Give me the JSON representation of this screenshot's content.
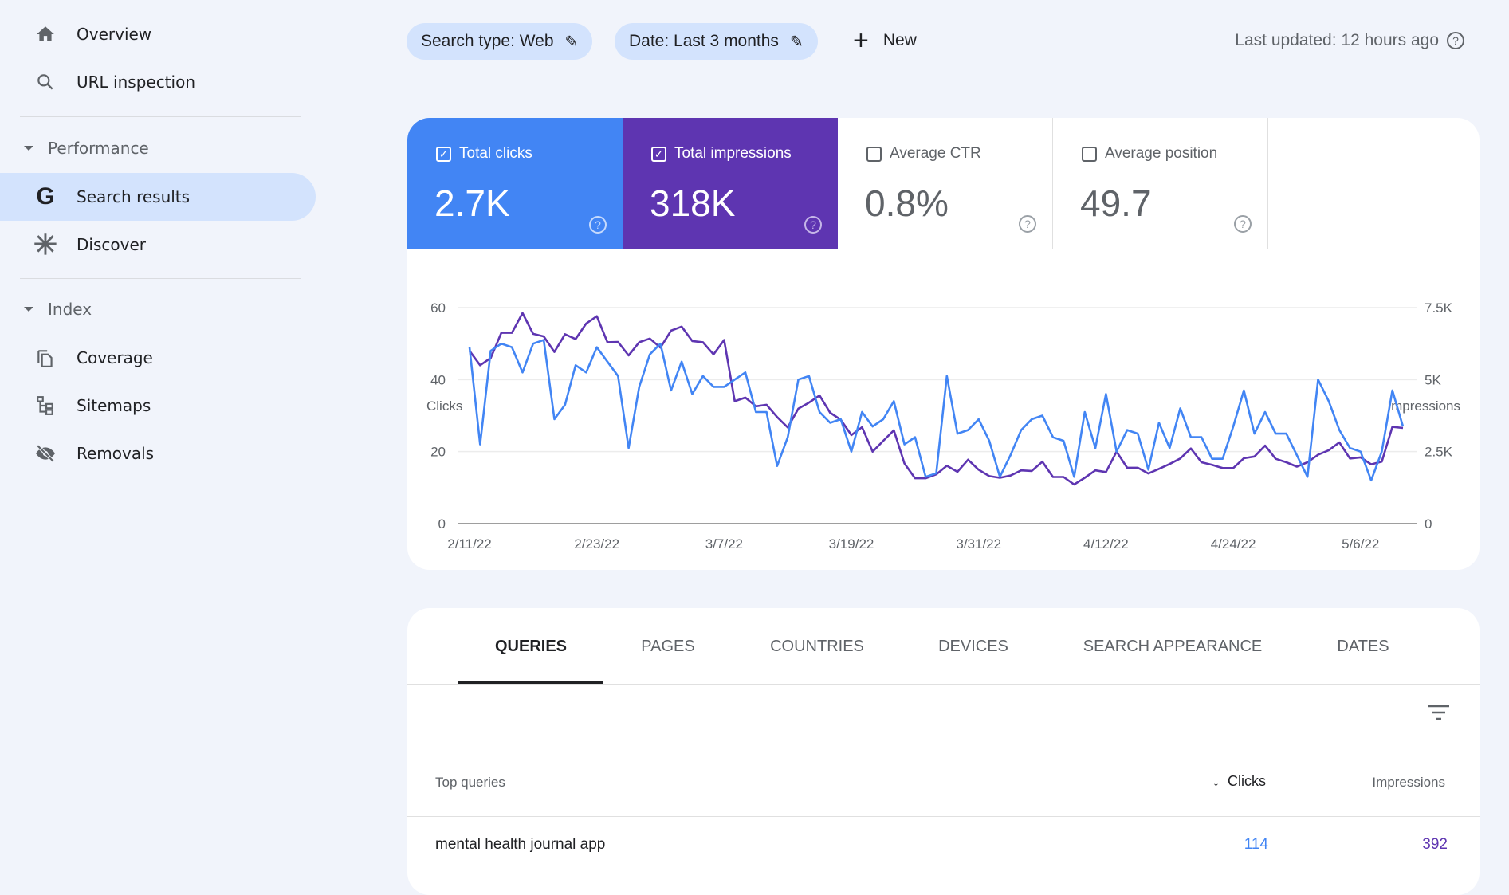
{
  "sidebar": {
    "items": [
      {
        "label": "Overview",
        "icon": "home-icon"
      },
      {
        "label": "URL inspection",
        "icon": "search-icon"
      }
    ],
    "sections": [
      {
        "label": "Performance",
        "items": [
          {
            "label": "Search results",
            "icon": "google-g-icon",
            "selected": true
          },
          {
            "label": "Discover",
            "icon": "asterisk-icon"
          }
        ]
      },
      {
        "label": "Index",
        "items": [
          {
            "label": "Coverage",
            "icon": "copy-icon"
          },
          {
            "label": "Sitemaps",
            "icon": "sitemap-icon"
          },
          {
            "label": "Removals",
            "icon": "eye-off-icon"
          }
        ]
      }
    ]
  },
  "toolbar": {
    "search_type": "Search type: Web",
    "date": "Date: Last 3 months",
    "new_label": "New",
    "last_updated": "Last updated: 12 hours ago"
  },
  "metrics": [
    {
      "label": "Total clicks",
      "value": "2.7K",
      "checked": true,
      "color": "#4285f4"
    },
    {
      "label": "Total impressions",
      "value": "318K",
      "checked": true,
      "color": "#5e35b1"
    },
    {
      "label": "Average CTR",
      "value": "0.8%",
      "checked": false
    },
    {
      "label": "Average position",
      "value": "49.7",
      "checked": false
    }
  ],
  "chart_data": {
    "type": "line",
    "ylabel_left": "Clicks",
    "ylabel_right": "Impressions",
    "yticks_left": [
      "0",
      "20",
      "40",
      "60"
    ],
    "yticks_right": [
      "0",
      "2.5K",
      "5K",
      "7.5K"
    ],
    "ylim_left": [
      0,
      60
    ],
    "ylim_right": [
      0,
      7500
    ],
    "x_start": "2/11/22",
    "xticks": [
      "2/11/22",
      "2/23/22",
      "3/7/22",
      "3/19/22",
      "3/31/22",
      "4/12/22",
      "4/24/22",
      "5/6/22"
    ],
    "grid": true,
    "series": [
      {
        "name": "Clicks",
        "axis": "left",
        "color": "#4285f4",
        "values": [
          49,
          22,
          48,
          50,
          49,
          42,
          50,
          51,
          29,
          33,
          44,
          42,
          49,
          45,
          41,
          21,
          38,
          47,
          50,
          37,
          45,
          36,
          41,
          38,
          38,
          40,
          42,
          31,
          31,
          16,
          24,
          40,
          41,
          31,
          28,
          29,
          20,
          31,
          27,
          29,
          34,
          22,
          24,
          13,
          14,
          41,
          25,
          26,
          29,
          23,
          13,
          19,
          26,
          29,
          30,
          24,
          23,
          13,
          31,
          21,
          36,
          20,
          26,
          25,
          15,
          28,
          21,
          32,
          24,
          24,
          18,
          18,
          27,
          37,
          25,
          31,
          25,
          25,
          19,
          13,
          40,
          34,
          26,
          21,
          20,
          12,
          20,
          37,
          27
        ]
      },
      {
        "name": "Impressions",
        "axis": "right",
        "color": "#5e35b1",
        "values": [
          6000,
          5500,
          5750,
          6625,
          6625,
          7310,
          6590,
          6500,
          5960,
          6575,
          6410,
          6950,
          7200,
          6300,
          6310,
          5840,
          6300,
          6425,
          6110,
          6700,
          6840,
          6340,
          6300,
          5875,
          6375,
          4250,
          4375,
          4075,
          4125,
          3700,
          3340,
          3990,
          4200,
          4450,
          3850,
          3610,
          3075,
          3350,
          2500,
          2875,
          3240,
          2090,
          1575,
          1575,
          1710,
          2010,
          1800,
          2220,
          1870,
          1650,
          1590,
          1670,
          1850,
          1830,
          2150,
          1620,
          1620,
          1360,
          1590,
          1850,
          1790,
          2500,
          1940,
          1940,
          1740,
          1900,
          2070,
          2260,
          2610,
          2130,
          2040,
          1930,
          1930,
          2270,
          2330,
          2710,
          2250,
          2130,
          1980,
          2130,
          2390,
          2550,
          2820,
          2260,
          2300,
          2060,
          2150,
          3360,
          3320
        ]
      }
    ]
  },
  "table": {
    "tabs": [
      "QUERIES",
      "PAGES",
      "COUNTRIES",
      "DEVICES",
      "SEARCH APPEARANCE",
      "DATES"
    ],
    "selected_tab": "QUERIES",
    "columns": [
      "Top queries",
      "Clicks",
      "Impressions"
    ],
    "sort_column": "Clicks",
    "rows": [
      {
        "query": "mental health journal app",
        "clicks": "114",
        "impressions": "392"
      }
    ]
  }
}
